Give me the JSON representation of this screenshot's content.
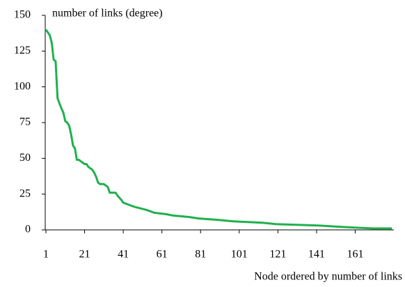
{
  "chart_data": {
    "type": "line",
    "y_label": "number of links (degree)",
    "x_label": "Node ordered by number of links",
    "x": [
      1,
      3,
      4,
      5,
      6,
      7,
      9,
      10,
      11,
      12,
      13,
      14,
      15,
      16,
      17,
      18,
      19,
      20,
      21,
      22,
      23,
      24,
      25,
      26,
      27,
      28,
      29,
      31,
      32,
      33,
      34,
      37,
      38,
      40,
      41,
      43,
      45,
      47,
      50,
      53,
      55,
      57,
      63,
      67,
      75,
      80,
      90,
      98,
      113,
      120,
      142,
      155,
      170,
      180
    ],
    "series": [
      {
        "name": "degree",
        "color": "#1fb04d",
        "values": [
          140,
          136,
          131,
          119,
          118,
          92,
          85,
          82,
          76,
          75,
          73,
          67,
          59,
          57,
          49,
          49,
          48,
          47,
          46,
          46,
          44,
          43,
          42,
          40,
          37,
          33,
          32,
          32,
          31,
          30,
          26,
          26,
          24,
          21,
          19,
          18,
          17,
          16,
          15,
          14,
          13,
          12,
          11,
          10,
          9,
          8,
          7,
          6,
          5,
          4,
          3,
          2,
          1,
          1
        ]
      }
    ],
    "xlim": [
      1,
      181
    ],
    "xticks": [
      1,
      21,
      41,
      61,
      81,
      101,
      121,
      141,
      161
    ],
    "ylim": [
      0,
      150
    ],
    "yticks": [
      0,
      25,
      50,
      75,
      100,
      125,
      150
    ]
  }
}
